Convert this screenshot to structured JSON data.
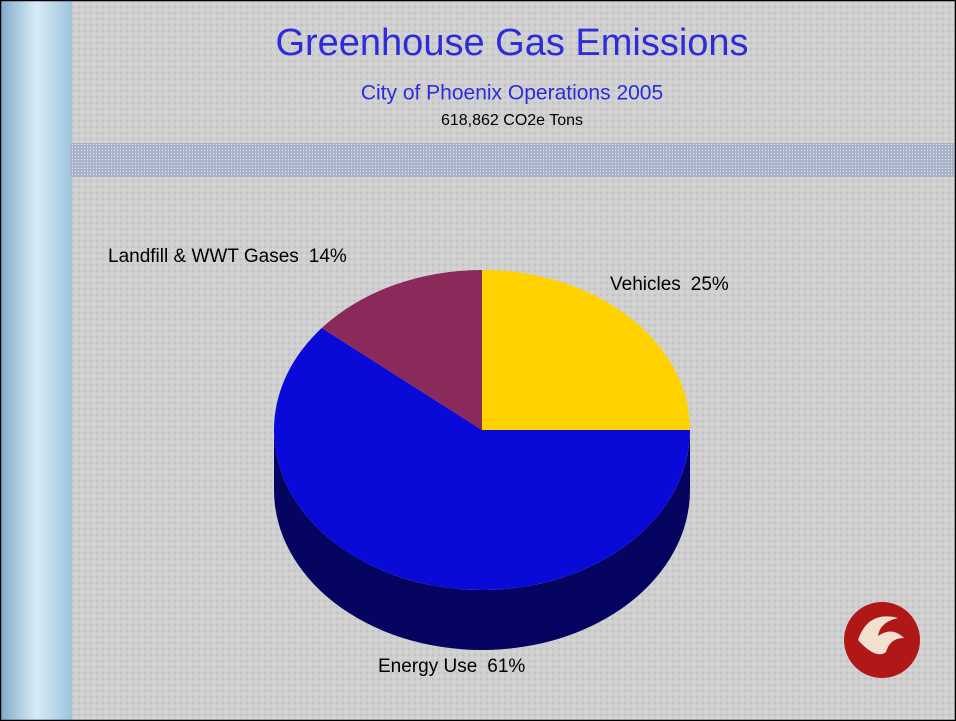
{
  "chart_data": {
    "type": "pie",
    "title": "Greenhouse Gas Emissions",
    "subtitle": "City of Phoenix Operations 2005",
    "subtitle2": "618,862 CO2e Tons",
    "categories": [
      "Vehicles",
      "Energy Use",
      "Landfill & WWT Gases"
    ],
    "values": [
      25,
      61,
      14
    ],
    "value_labels": [
      "25%",
      "61%",
      "14%"
    ],
    "colors": [
      "#ffd200",
      "#0a0ad8",
      "#8a2a5a"
    ]
  }
}
